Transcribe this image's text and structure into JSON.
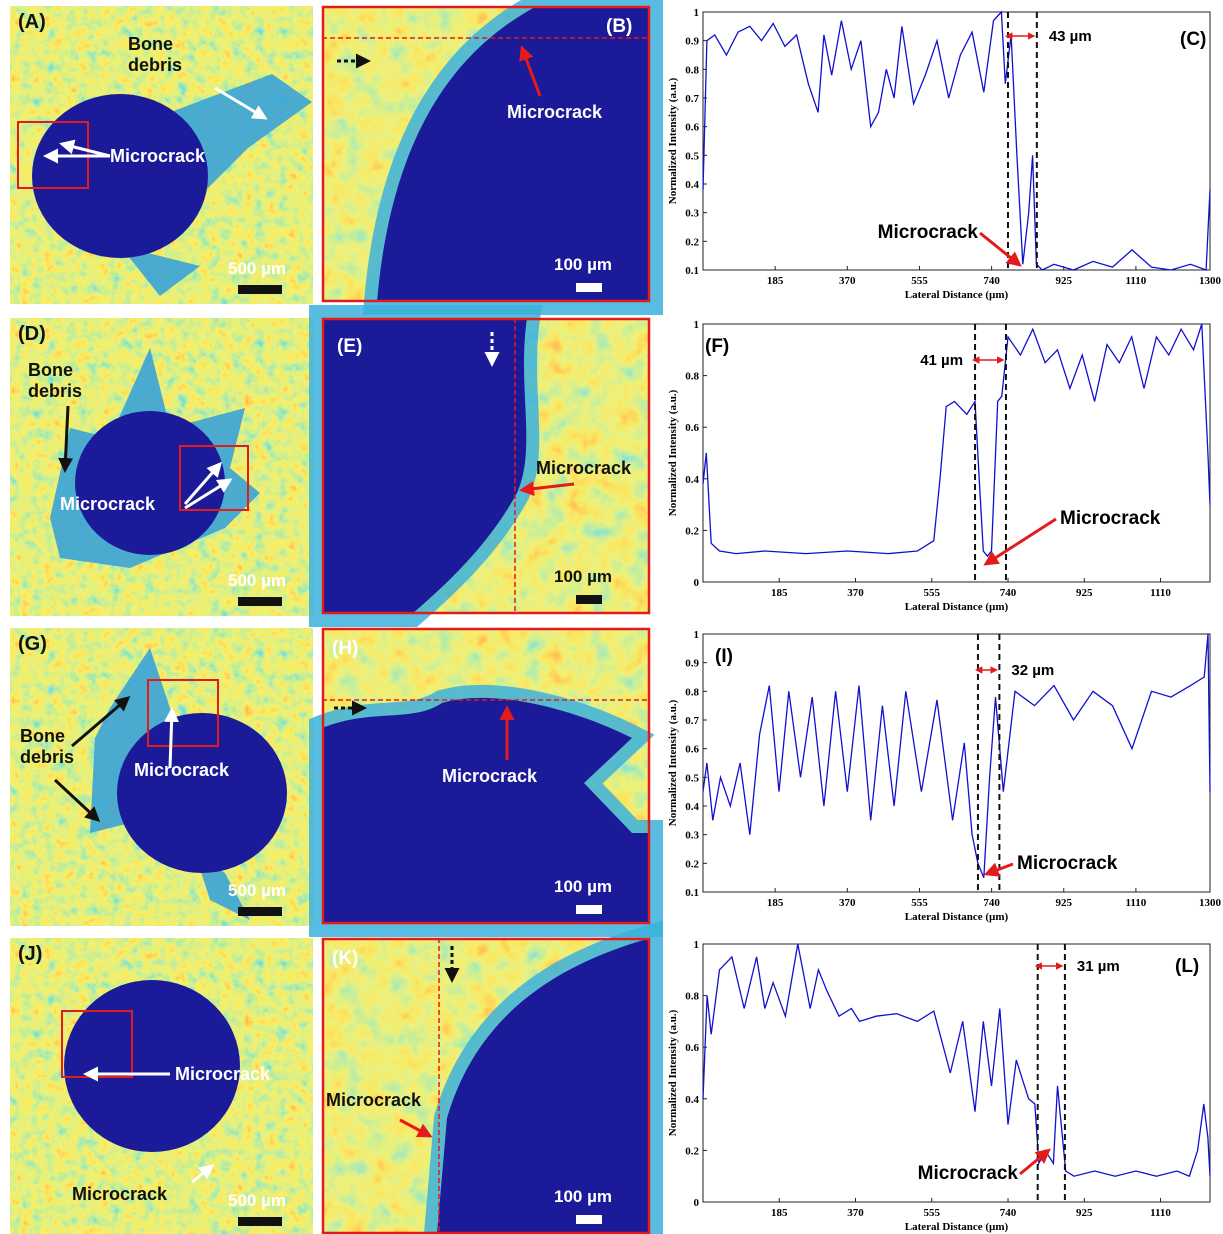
{
  "panels": [
    {
      "overview": {
        "label": "(A)",
        "texts": [
          "Bone debris",
          "Microcrack"
        ],
        "scale": "500 µm"
      },
      "zoom": {
        "label": "(B)",
        "texts": [
          "Microcrack"
        ],
        "scale": "100 µm"
      }
    },
    {
      "overview": {
        "label": "(D)",
        "texts": [
          "Bone debris",
          "Microcrack"
        ],
        "scale": "500 µm"
      },
      "zoom": {
        "label": "(E)",
        "texts": [
          "Microcrack"
        ],
        "scale": "100 µm"
      }
    },
    {
      "overview": {
        "label": "(G)",
        "texts": [
          "Bone debris",
          "Microcrack"
        ],
        "scale": "500 µm"
      },
      "zoom": {
        "label": "(H)",
        "texts": [
          "Microcrack"
        ],
        "scale": "100 µm"
      }
    },
    {
      "overview": {
        "label": "(J)",
        "texts": [
          "Microcrack",
          "Microcrack"
        ],
        "scale": "500 µm"
      },
      "zoom": {
        "label": "(K)",
        "texts": [
          "Microcrack"
        ],
        "scale": "100 µm"
      }
    }
  ],
  "chart_data": [
    {
      "type": "line",
      "panel_label": "(C)",
      "span_label": "43 µm",
      "annotation": "Microcrack",
      "xlabel": "Lateral Distance (µm)",
      "ylabel": "Normalized Intensity (a.u.)",
      "color": "#1010d0",
      "xlim": [
        0,
        1300
      ],
      "ylim": [
        0.1,
        1
      ],
      "xticks": [
        185,
        370,
        555,
        740,
        925,
        1110,
        1300
      ],
      "yticks": [
        0.1,
        0.2,
        0.3,
        0.4,
        0.5,
        0.6,
        0.7,
        0.8,
        0.9,
        1
      ],
      "vlines": [
        782,
        856
      ],
      "x": [
        0,
        10,
        30,
        60,
        90,
        120,
        150,
        180,
        210,
        240,
        270,
        295,
        310,
        330,
        355,
        380,
        405,
        430,
        450,
        470,
        490,
        510,
        540,
        570,
        600,
        630,
        660,
        690,
        720,
        745,
        765,
        775,
        790,
        805,
        820,
        835,
        845,
        855,
        870,
        900,
        950,
        1000,
        1050,
        1100,
        1150,
        1200,
        1250,
        1290,
        1300
      ],
      "values": [
        0.38,
        0.9,
        0.92,
        0.85,
        0.93,
        0.95,
        0.9,
        0.96,
        0.88,
        0.92,
        0.75,
        0.65,
        0.92,
        0.78,
        0.97,
        0.8,
        0.9,
        0.6,
        0.65,
        0.8,
        0.7,
        0.95,
        0.68,
        0.78,
        0.9,
        0.7,
        0.85,
        0.93,
        0.72,
        0.97,
        1.0,
        0.75,
        0.92,
        0.5,
        0.12,
        0.3,
        0.5,
        0.12,
        0.1,
        0.12,
        0.1,
        0.13,
        0.11,
        0.17,
        0.11,
        0.1,
        0.12,
        0.1,
        0.38
      ]
    },
    {
      "type": "line",
      "panel_label": "(F)",
      "span_label": "41 µm",
      "annotation": "Microcrack",
      "xlabel": "Lateral Distance (µm)",
      "ylabel": "Normalized Intensity (a.u.)",
      "color": "#1010d0",
      "xlim": [
        0,
        1230
      ],
      "ylim": [
        0,
        1
      ],
      "xticks": [
        185,
        370,
        555,
        740,
        925,
        1110
      ],
      "yticks": [
        0,
        0.2,
        0.4,
        0.6,
        0.8,
        1
      ],
      "vlines": [
        660,
        735
      ],
      "x": [
        0,
        8,
        20,
        40,
        80,
        150,
        250,
        350,
        450,
        520,
        560,
        575,
        590,
        610,
        640,
        660,
        670,
        680,
        690,
        700,
        715,
        725,
        740,
        770,
        800,
        830,
        860,
        890,
        920,
        950,
        980,
        1010,
        1040,
        1070,
        1100,
        1130,
        1160,
        1190,
        1210,
        1225,
        1230
      ],
      "values": [
        0.38,
        0.5,
        0.15,
        0.12,
        0.11,
        0.12,
        0.11,
        0.12,
        0.11,
        0.12,
        0.16,
        0.4,
        0.68,
        0.7,
        0.65,
        0.7,
        0.4,
        0.12,
        0.1,
        0.12,
        0.7,
        0.72,
        0.95,
        0.88,
        0.98,
        0.85,
        0.9,
        0.75,
        0.88,
        0.7,
        0.92,
        0.85,
        0.95,
        0.75,
        0.95,
        0.88,
        0.98,
        0.9,
        1.0,
        0.5,
        0.3
      ]
    },
    {
      "type": "line",
      "panel_label": "(I)",
      "span_label": "32 µm",
      "annotation": "Microcrack",
      "xlabel": "Lateral Distance (µm)",
      "ylabel": "Normalized Intensity (a.u.)",
      "color": "#1010d0",
      "xlim": [
        0,
        1300
      ],
      "ylim": [
        0.1,
        1
      ],
      "xticks": [
        185,
        370,
        555,
        740,
        925,
        1110,
        1300
      ],
      "yticks": [
        0.1,
        0.2,
        0.3,
        0.4,
        0.5,
        0.6,
        0.7,
        0.8,
        0.9,
        1
      ],
      "vlines": [
        705,
        760
      ],
      "x": [
        0,
        10,
        25,
        45,
        70,
        95,
        120,
        145,
        170,
        195,
        220,
        250,
        280,
        310,
        340,
        370,
        400,
        430,
        460,
        490,
        520,
        560,
        600,
        640,
        670,
        690,
        705,
        720,
        735,
        750,
        770,
        800,
        850,
        900,
        950,
        1000,
        1050,
        1100,
        1150,
        1200,
        1250,
        1285,
        1295,
        1300
      ],
      "values": [
        0.45,
        0.55,
        0.35,
        0.5,
        0.4,
        0.55,
        0.3,
        0.65,
        0.82,
        0.45,
        0.8,
        0.5,
        0.78,
        0.4,
        0.8,
        0.45,
        0.82,
        0.35,
        0.75,
        0.4,
        0.8,
        0.45,
        0.77,
        0.35,
        0.62,
        0.3,
        0.2,
        0.15,
        0.5,
        0.78,
        0.45,
        0.8,
        0.75,
        0.82,
        0.7,
        0.8,
        0.75,
        0.6,
        0.8,
        0.78,
        0.82,
        0.85,
        1.0,
        0.45
      ]
    },
    {
      "type": "line",
      "panel_label": "(L)",
      "span_label": "31 µm",
      "annotation": "Microcrack",
      "xlabel": "Lateral Distance (µm)",
      "ylabel": "Normalized Intensity (a.u.)",
      "color": "#1010d0",
      "xlim": [
        0,
        1230
      ],
      "ylim": [
        0,
        1
      ],
      "xticks": [
        185,
        370,
        555,
        740,
        925,
        1110
      ],
      "yticks": [
        0,
        0.2,
        0.4,
        0.6,
        0.8,
        1
      ],
      "vlines": [
        812,
        878
      ],
      "x": [
        0,
        10,
        20,
        40,
        70,
        100,
        130,
        150,
        170,
        200,
        230,
        260,
        280,
        300,
        330,
        360,
        380,
        420,
        470,
        520,
        560,
        600,
        630,
        660,
        680,
        700,
        720,
        740,
        760,
        790,
        805,
        815,
        830,
        850,
        860,
        880,
        900,
        950,
        1000,
        1050,
        1100,
        1150,
        1180,
        1200,
        1215,
        1225,
        1230
      ],
      "values": [
        0.4,
        0.8,
        0.65,
        0.9,
        0.95,
        0.75,
        0.95,
        0.75,
        0.85,
        0.72,
        1.0,
        0.75,
        0.9,
        0.82,
        0.72,
        0.75,
        0.7,
        0.72,
        0.73,
        0.7,
        0.74,
        0.5,
        0.7,
        0.35,
        0.7,
        0.45,
        0.75,
        0.3,
        0.55,
        0.4,
        0.38,
        0.15,
        0.2,
        0.15,
        0.45,
        0.12,
        0.1,
        0.12,
        0.1,
        0.12,
        0.1,
        0.12,
        0.1,
        0.2,
        0.38,
        0.25,
        0.1
      ]
    }
  ]
}
